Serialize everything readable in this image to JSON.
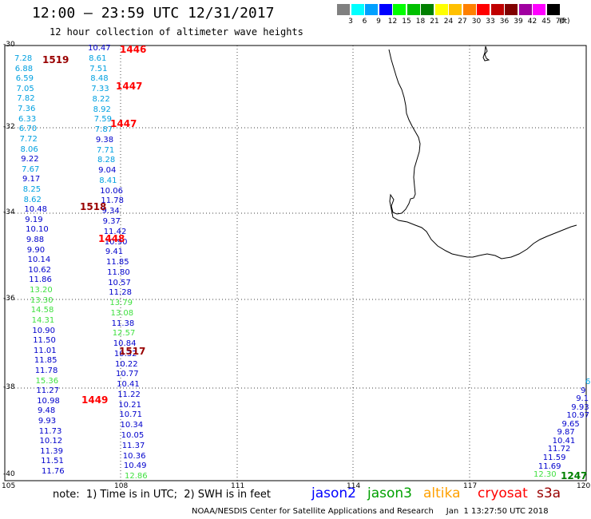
{
  "header": {
    "title": "12:00 – 23:59 UTC 12/31/2017",
    "subtitle": "12 hour collection of altimeter wave heights"
  },
  "scale": {
    "unit": "(ft)",
    "bins": [
      {
        "label": "3",
        "color": "#808080"
      },
      {
        "label": "6",
        "color": "#00ffff"
      },
      {
        "label": "9",
        "color": "#00a0ff"
      },
      {
        "label": "12",
        "color": "#0000ff"
      },
      {
        "label": "15",
        "color": "#00ff00"
      },
      {
        "label": "18",
        "color": "#00c000"
      },
      {
        "label": "21",
        "color": "#008000"
      },
      {
        "label": "24",
        "color": "#ffff00"
      },
      {
        "label": "27",
        "color": "#ffc000"
      },
      {
        "label": "30",
        "color": "#ff8000"
      },
      {
        "label": "33",
        "color": "#ff0000"
      },
      {
        "label": "36",
        "color": "#c00000"
      },
      {
        "label": "39",
        "color": "#800000"
      },
      {
        "label": "42",
        "color": "#a000a0"
      },
      {
        "label": "45",
        "color": "#ff00ff"
      },
      {
        "label": "70",
        "color": "#000000"
      }
    ]
  },
  "axes": {
    "lat_labels": [
      "-30",
      "-32",
      "-34",
      "-36",
      "-38",
      "-40"
    ],
    "lon_labels": [
      "105",
      "108",
      "111",
      "114",
      "117",
      "120"
    ]
  },
  "colors": {
    "cyan": "#00a0e0",
    "blue": "#0000cc",
    "green": "#40e040",
    "darkgreen": "#008000",
    "red": "#ff0000",
    "darkred": "#990000"
  },
  "track_left": [
    {
      "v": "7.28",
      "c": "cyan"
    },
    {
      "v": "6.88",
      "c": "cyan"
    },
    {
      "v": "6.59",
      "c": "cyan"
    },
    {
      "v": "7.05",
      "c": "cyan"
    },
    {
      "v": "7.82",
      "c": "cyan"
    },
    {
      "v": "7.36",
      "c": "cyan"
    },
    {
      "v": "6.33",
      "c": "cyan"
    },
    {
      "v": "6.70",
      "c": "cyan"
    },
    {
      "v": "7.72",
      "c": "cyan"
    },
    {
      "v": "8.06",
      "c": "cyan"
    },
    {
      "v": "9.22",
      "c": "blue"
    },
    {
      "v": "7.67",
      "c": "cyan"
    },
    {
      "v": "9.17",
      "c": "blue"
    },
    {
      "v": "8.25",
      "c": "cyan"
    },
    {
      "v": "8.62",
      "c": "cyan"
    },
    {
      "v": "10.48",
      "c": "blue"
    },
    {
      "v": "9.19",
      "c": "blue"
    },
    {
      "v": "10.10",
      "c": "blue"
    },
    {
      "v": "9.88",
      "c": "blue"
    },
    {
      "v": "9.90",
      "c": "blue"
    },
    {
      "v": "10.14",
      "c": "blue"
    },
    {
      "v": "10.62",
      "c": "blue"
    },
    {
      "v": "11.86",
      "c": "blue"
    },
    {
      "v": "13.20",
      "c": "green"
    },
    {
      "v": "13.30",
      "c": "green"
    },
    {
      "v": "14.58",
      "c": "green"
    },
    {
      "v": "14.31",
      "c": "green"
    },
    {
      "v": "10.90",
      "c": "blue"
    },
    {
      "v": "11.50",
      "c": "blue"
    },
    {
      "v": "11.01",
      "c": "blue"
    },
    {
      "v": "11.85",
      "c": "blue"
    },
    {
      "v": "11.78",
      "c": "blue"
    },
    {
      "v": "15.36",
      "c": "green"
    },
    {
      "v": "11.27",
      "c": "blue"
    },
    {
      "v": "10.98",
      "c": "blue"
    },
    {
      "v": "9.48",
      "c": "blue"
    },
    {
      "v": "9.93",
      "c": "blue"
    },
    {
      "v": "11.73",
      "c": "blue"
    },
    {
      "v": "10.12",
      "c": "blue"
    },
    {
      "v": "11.39",
      "c": "blue"
    },
    {
      "v": "11.51",
      "c": "blue"
    },
    {
      "v": "11.76",
      "c": "blue"
    }
  ],
  "track_mid": [
    {
      "v": "10.47",
      "c": "blue"
    },
    {
      "v": "8.61",
      "c": "cyan"
    },
    {
      "v": "7.51",
      "c": "cyan"
    },
    {
      "v": "8.48",
      "c": "cyan"
    },
    {
      "v": "7.33",
      "c": "cyan"
    },
    {
      "v": "8.22",
      "c": "cyan"
    },
    {
      "v": "8.92",
      "c": "cyan"
    },
    {
      "v": "7.59",
      "c": "cyan"
    },
    {
      "v": "7.87",
      "c": "cyan"
    },
    {
      "v": "9.38",
      "c": "blue"
    },
    {
      "v": "7.71",
      "c": "cyan"
    },
    {
      "v": "8.28",
      "c": "cyan"
    },
    {
      "v": "9.04",
      "c": "blue"
    },
    {
      "v": "8.41",
      "c": "cyan"
    },
    {
      "v": "10.06",
      "c": "blue"
    },
    {
      "v": "11.78",
      "c": "blue"
    },
    {
      "v": "9.34",
      "c": "blue"
    },
    {
      "v": "9.37",
      "c": "blue"
    },
    {
      "v": "11.42",
      "c": "blue"
    },
    {
      "v": "10.90",
      "c": "blue"
    },
    {
      "v": "9.41",
      "c": "blue"
    },
    {
      "v": "11.85",
      "c": "blue"
    },
    {
      "v": "11.80",
      "c": "blue"
    },
    {
      "v": "10.57",
      "c": "blue"
    },
    {
      "v": "11.28",
      "c": "blue"
    },
    {
      "v": "13.79",
      "c": "green"
    },
    {
      "v": "13.08",
      "c": "green"
    },
    {
      "v": "11.38",
      "c": "blue"
    },
    {
      "v": "12.57",
      "c": "green"
    },
    {
      "v": "10.84",
      "c": "blue"
    },
    {
      "v": "10.32",
      "c": "blue"
    },
    {
      "v": "10.22",
      "c": "blue"
    },
    {
      "v": "10.77",
      "c": "blue"
    },
    {
      "v": "10.41",
      "c": "blue"
    },
    {
      "v": "11.22",
      "c": "blue"
    },
    {
      "v": "10.21",
      "c": "blue"
    },
    {
      "v": "10.71",
      "c": "blue"
    },
    {
      "v": "10.34",
      "c": "blue"
    },
    {
      "v": "10.05",
      "c": "blue"
    },
    {
      "v": "11.37",
      "c": "blue"
    },
    {
      "v": "10.36",
      "c": "blue"
    },
    {
      "v": "10.49",
      "c": "blue"
    },
    {
      "v": "12.86",
      "c": "green"
    }
  ],
  "track_right": [
    {
      "v": "6",
      "c": "cyan"
    },
    {
      "v": "9",
      "c": "blue"
    },
    {
      "v": "9.1",
      "c": "blue"
    },
    {
      "v": "9.93",
      "c": "blue"
    },
    {
      "v": "10.97",
      "c": "blue"
    },
    {
      "v": "9.65",
      "c": "blue"
    },
    {
      "v": "9.87",
      "c": "blue"
    },
    {
      "v": "10.41",
      "c": "blue"
    },
    {
      "v": "11.72",
      "c": "blue"
    },
    {
      "v": "11.59",
      "c": "blue"
    },
    {
      "v": "11.69",
      "c": "blue"
    },
    {
      "v": "12.30",
      "c": "green"
    }
  ],
  "times": [
    {
      "t": "1446",
      "c": "red"
    },
    {
      "t": "1519",
      "c": "darkred"
    },
    {
      "t": "1447",
      "c": "red"
    },
    {
      "t": "1447",
      "c": "red"
    },
    {
      "t": "1518",
      "c": "darkred"
    },
    {
      "t": "1448",
      "c": "red"
    },
    {
      "t": "1517",
      "c": "darkred"
    },
    {
      "t": "1449",
      "c": "red"
    },
    {
      "t": "1247",
      "c": "darkgreen"
    }
  ],
  "footer": {
    "note": "note:  1) Time is in UTC;  2) SWH is in feet",
    "legend": [
      {
        "label": "jason2",
        "color": "#0000ff"
      },
      {
        "label": "jason3",
        "color": "#00a000"
      },
      {
        "label": "altika",
        "color": "#ffa000"
      },
      {
        "label": "cryosat",
        "color": "#ff0000"
      },
      {
        "label": "s3a",
        "color": "#990000"
      }
    ],
    "credit": "NOAA/NESDIS Center for Satellite Applications and Research     Jan  1 13:27:50 UTC 2018"
  }
}
